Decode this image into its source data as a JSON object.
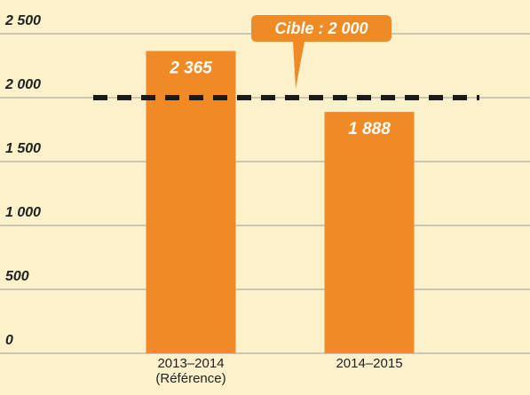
{
  "chart_data": {
    "type": "bar",
    "categories": [
      "2013–2014 (Référence)",
      "2014–2015"
    ],
    "values": [
      2365,
      1888
    ],
    "value_labels": [
      "2 365",
      "1 888"
    ],
    "color": "#f08a24",
    "ylim": [
      0,
      2500
    ],
    "yticks": [
      0,
      500,
      {
        "value": 1000,
        "label": "1 000"
      },
      {
        "value": 1500,
        "label": "1 500"
      },
      {
        "value": 2000,
        "label": "2 000"
      },
      {
        "value": 2500,
        "label": "2 500"
      }
    ],
    "grid": true,
    "target": 2000,
    "target_label": "Cible : 2 000"
  }
}
